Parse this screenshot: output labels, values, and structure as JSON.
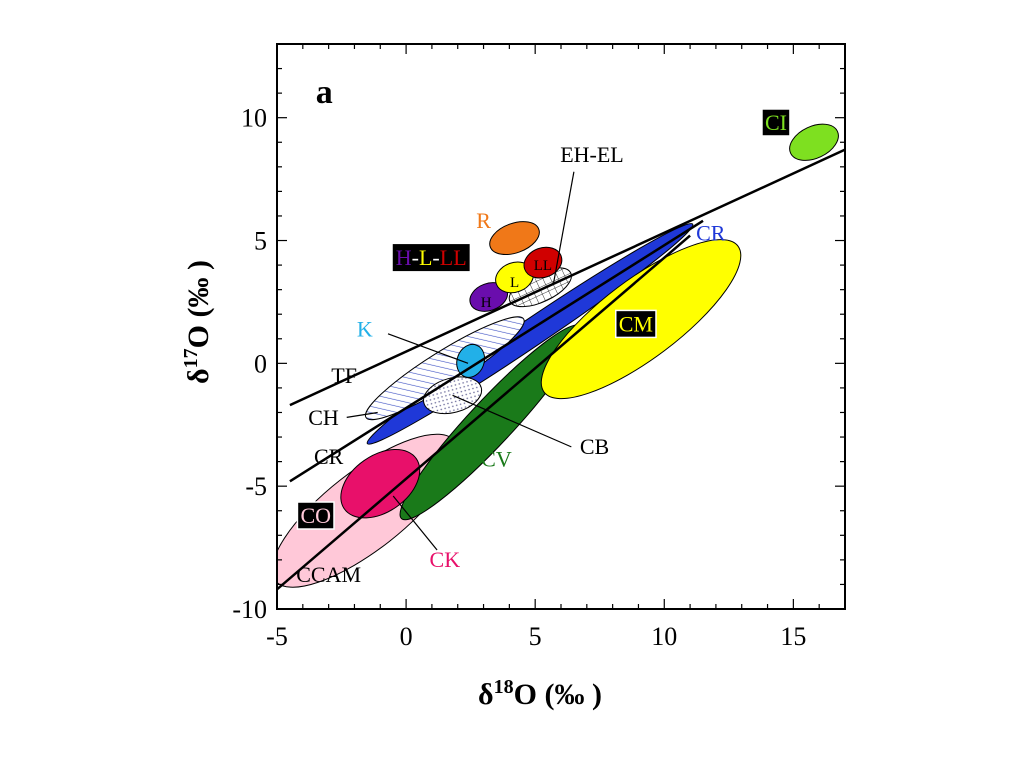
{
  "chart_data": {
    "type": "scatter",
    "title": "",
    "panel_label": "a",
    "xlabel_prefix": "δ",
    "xlabel_sup": "18",
    "xlabel_suffix": "O (‰ )",
    "ylabel_prefix": "δ",
    "ylabel_sup": "17",
    "ylabel_suffix": "O (‰ )",
    "xlim": [
      -5,
      17
    ],
    "ylim": [
      -10,
      13
    ],
    "x_ticks": [
      {
        "value": -5,
        "label": "-5"
      },
      {
        "value": 0,
        "label": "0"
      },
      {
        "value": 5,
        "label": "5"
      },
      {
        "value": 10,
        "label": "10"
      },
      {
        "value": 15,
        "label": "15"
      }
    ],
    "y_ticks": [
      {
        "value": 10,
        "label": "10"
      },
      {
        "value": 5,
        "label": "5"
      },
      {
        "value": 0,
        "label": "0"
      },
      {
        "value": -5,
        "label": "-5"
      },
      {
        "value": -10,
        "label": "-10"
      }
    ],
    "lines": [
      {
        "name": "TF",
        "x1": -4.5,
        "y1": -1.7,
        "x2": 17,
        "y2": 8.7,
        "style": "solid"
      },
      {
        "name": "CCAM",
        "x1": -5,
        "y1": -9.2,
        "x2": 11,
        "y2": 5.2,
        "style": "solid"
      },
      {
        "name": "CR",
        "x1": -4.5,
        "y1": -4.8,
        "x2": 11.5,
        "y2": 5.8,
        "style": "solid"
      }
    ],
    "regions": [
      {
        "name": "CO",
        "color": "#ffc8d8",
        "stroke": "#000",
        "pattern": "",
        "cx": -1.6,
        "cy": -6.0,
        "rx": 4.4,
        "ry": 1.6,
        "angle": 38
      },
      {
        "name": "CV",
        "color": "#1a7a1a",
        "stroke": "#000",
        "pattern": "",
        "cx": 3.3,
        "cy": -2.4,
        "rx": 5.1,
        "ry": 0.9,
        "angle": 47
      },
      {
        "name": "CR",
        "color": "#1f38d8",
        "stroke": "#000",
        "pattern": "",
        "cx": 4.8,
        "cy": 1.2,
        "rx": 7.6,
        "ry": 0.55,
        "angle": 34
      },
      {
        "name": "CM",
        "color": "#ffff00",
        "stroke": "#000",
        "pattern": "",
        "cx": 9.1,
        "cy": 1.8,
        "rx": 4.7,
        "ry": 1.6,
        "angle": 37
      },
      {
        "name": "CH",
        "color": "#ffffff",
        "stroke": "#000",
        "pattern": "hatch",
        "cx": 1.5,
        "cy": -0.2,
        "rx": 3.6,
        "ry": 0.7,
        "angle": 32
      },
      {
        "name": "CB",
        "color": "#ffffff",
        "stroke": "#000",
        "pattern": "dots",
        "cx": 1.8,
        "cy": -1.3,
        "rx": 1.15,
        "ry": 0.7,
        "angle": 15
      },
      {
        "name": "K",
        "color": "#22b0e8",
        "stroke": "#000",
        "pattern": "",
        "cx": 2.5,
        "cy": 0.1,
        "rx": 0.65,
        "ry": 0.55,
        "angle": 70
      },
      {
        "name": "CK",
        "color": "#e8106a",
        "stroke": "#000",
        "pattern": "",
        "cx": -1.0,
        "cy": -4.9,
        "rx": 1.7,
        "ry": 1.15,
        "angle": 35
      },
      {
        "name": "EH-EL",
        "color": "#ffffff",
        "stroke": "#000",
        "pattern": "grid",
        "cx": 5.2,
        "cy": 3.1,
        "rx": 1.3,
        "ry": 0.6,
        "angle": 25
      },
      {
        "name": "H",
        "color": "#6a0dad",
        "stroke": "#000",
        "pattern": "",
        "cx": 3.2,
        "cy": 2.7,
        "rx": 0.75,
        "ry": 0.55,
        "angle": 20
      },
      {
        "name": "L",
        "color": "#ffff00",
        "stroke": "#000",
        "pattern": "",
        "cx": 4.2,
        "cy": 3.5,
        "rx": 0.75,
        "ry": 0.6,
        "angle": 20
      },
      {
        "name": "LL",
        "color": "#d00000",
        "stroke": "#000",
        "pattern": "",
        "cx": 5.3,
        "cy": 4.1,
        "rx": 0.75,
        "ry": 0.6,
        "angle": 20
      },
      {
        "name": "R",
        "color": "#f07818",
        "stroke": "#000",
        "pattern": "",
        "cx": 4.2,
        "cy": 5.1,
        "rx": 1.0,
        "ry": 0.6,
        "angle": 20
      },
      {
        "name": "CI",
        "color": "#7ee020",
        "stroke": "#000",
        "pattern": "",
        "cx": 15.8,
        "cy": 9.0,
        "rx": 1.0,
        "ry": 0.65,
        "angle": 25
      }
    ],
    "labels": [
      {
        "text": "a",
        "x": -3.5,
        "y": 10.6,
        "color": "#000000",
        "bg": "",
        "size": 34,
        "bold": true,
        "anchor": "start"
      },
      {
        "text": "CI",
        "x": 13.9,
        "y": 9.5,
        "color": "#7ee020",
        "bg": "#000000",
        "size": 22,
        "bold": false,
        "anchor": "start"
      },
      {
        "text": "EH-EL",
        "x": 7.2,
        "y": 8.2,
        "color": "#000000",
        "bg": "",
        "size": 22,
        "bold": false,
        "anchor": "middle"
      },
      {
        "text": "R",
        "x": 3.0,
        "y": 5.5,
        "color": "#f07818",
        "bg": "",
        "size": 22,
        "bold": false,
        "anchor": "middle"
      },
      {
        "text": "CR",
        "x": 11.8,
        "y": 5.0,
        "color": "#1f38d8",
        "bg": "",
        "size": 22,
        "bold": false,
        "anchor": "middle"
      },
      {
        "text": "CM",
        "x": 8.9,
        "y": 1.3,
        "color": "#ffff00",
        "bg": "#000000",
        "size": 22,
        "bold": false,
        "anchor": "middle"
      },
      {
        "text": "H",
        "x": 3.1,
        "y": 2.3,
        "color": "#000000",
        "bg": "",
        "size": 15,
        "bold": false,
        "anchor": "middle"
      },
      {
        "text": "L",
        "x": 4.2,
        "y": 3.1,
        "color": "#000000",
        "bg": "",
        "size": 15,
        "bold": false,
        "anchor": "middle"
      },
      {
        "text": "LL",
        "x": 5.3,
        "y": 3.8,
        "color": "#000000",
        "bg": "",
        "size": 15,
        "bold": false,
        "anchor": "middle"
      },
      {
        "text": "K",
        "x": -1.6,
        "y": 1.1,
        "color": "#22b0e8",
        "bg": "",
        "size": 22,
        "bold": false,
        "anchor": "middle"
      },
      {
        "text": "TF",
        "x": -2.4,
        "y": -0.8,
        "color": "#000000",
        "bg": "",
        "size": 22,
        "bold": false,
        "anchor": "middle"
      },
      {
        "text": "CH",
        "x": -3.2,
        "y": -2.5,
        "color": "#000000",
        "bg": "",
        "size": 22,
        "bold": false,
        "anchor": "middle"
      },
      {
        "text": "CR",
        "x": -3.0,
        "y": -4.1,
        "color": "#000000",
        "bg": "",
        "size": 22,
        "bold": false,
        "anchor": "middle"
      },
      {
        "text": "CV",
        "x": 3.5,
        "y": -4.2,
        "color": "#1a7a1a",
        "bg": "",
        "size": 22,
        "bold": false,
        "anchor": "middle"
      },
      {
        "text": "CB",
        "x": 7.3,
        "y": -3.7,
        "color": "#000000",
        "bg": "",
        "size": 22,
        "bold": false,
        "anchor": "middle"
      },
      {
        "text": "CO",
        "x": -3.5,
        "y": -6.5,
        "color": "#ffc8d8",
        "bg": "#000000",
        "size": 22,
        "bold": false,
        "anchor": "middle"
      },
      {
        "text": "CK",
        "x": 1.5,
        "y": -8.3,
        "color": "#e8106a",
        "bg": "",
        "size": 22,
        "bold": false,
        "anchor": "middle"
      },
      {
        "text": "CCAM",
        "x": -3.0,
        "y": -8.9,
        "color": "#000000",
        "bg": "",
        "size": 22,
        "bold": false,
        "anchor": "middle"
      }
    ],
    "group_label": {
      "bg": "#000000",
      "x": -0.4,
      "y": 4.0,
      "parts": [
        {
          "text": "H",
          "color": "#6a0dad"
        },
        {
          "text": "-",
          "color": "#ffffff"
        },
        {
          "text": "L",
          "color": "#ffff00"
        },
        {
          "text": "-",
          "color": "#ffffff"
        },
        {
          "text": "LL",
          "color": "#d00000"
        }
      ]
    },
    "leaders": [
      {
        "name": "EH-EL",
        "x1": 6.5,
        "y1": 7.8,
        "x2": 5.7,
        "y2": 3.2
      },
      {
        "name": "K",
        "x1": -0.7,
        "y1": 1.2,
        "x2": 2.4,
        "y2": 0.0
      },
      {
        "name": "CH",
        "x1": -2.3,
        "y1": -2.2,
        "x2": -1.1,
        "y2": -2.0
      },
      {
        "name": "CB",
        "x1": 6.4,
        "y1": -3.4,
        "x2": 1.8,
        "y2": -1.3
      },
      {
        "name": "CK",
        "x1": 1.2,
        "y1": -7.6,
        "x2": -0.5,
        "y2": -5.4
      }
    ]
  }
}
